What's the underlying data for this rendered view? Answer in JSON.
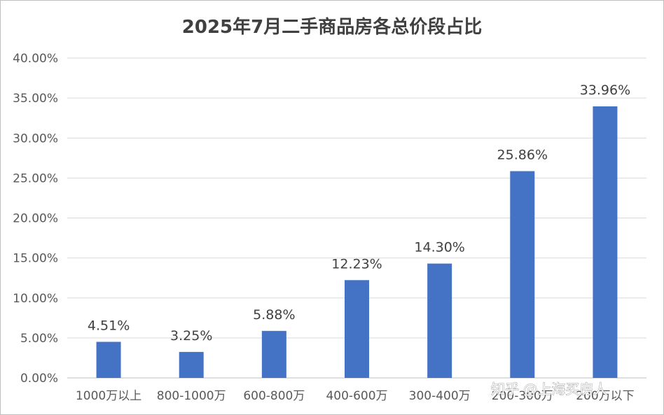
{
  "chart_data": {
    "type": "bar",
    "title": "2025年7月二手商品房各总价段占比",
    "xlabel": "",
    "ylabel": "",
    "categories": [
      "1000万以上",
      "800-1000万",
      "600-800万",
      "400-600万",
      "300-400万",
      "200-300万",
      "200万以下"
    ],
    "values": [
      4.51,
      3.25,
      5.88,
      12.23,
      14.3,
      25.86,
      33.96
    ],
    "data_labels": [
      "4.51%",
      "3.25%",
      "5.88%",
      "12.23%",
      "14.30%",
      "25.86%",
      "33.96%"
    ],
    "ylim": [
      0,
      40
    ],
    "y_ticks": [
      "0.00%",
      "5.00%",
      "10.00%",
      "15.00%",
      "20.00%",
      "25.00%",
      "30.00%",
      "35.00%",
      "40.00%"
    ],
    "grid": true,
    "legend": "none",
    "bar_color": "#4472C4"
  },
  "watermark": "知乎 @上海买房人"
}
